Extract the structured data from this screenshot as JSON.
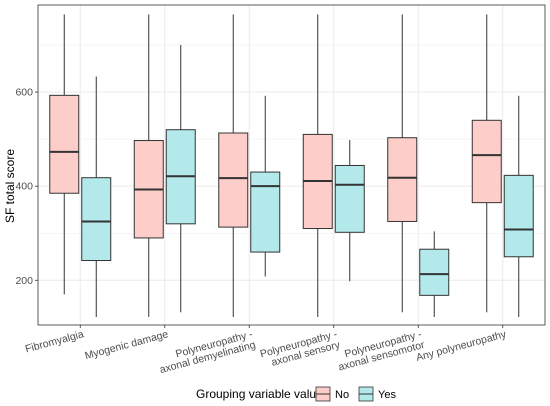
{
  "chart_data": {
    "type": "boxplot",
    "ylabel": "SF total score",
    "xlabel": "",
    "ylim": [
      105,
      785
    ],
    "y_ticks": [
      200,
      400,
      600
    ],
    "grid": true,
    "legend_position": "bottom",
    "legend_title": "Grouping variable value",
    "categories": [
      "Fibromyalgia",
      "Myogenic damage",
      "Polyneuropathy -\naxonal demyelinating",
      "Polyneuropathy -\naxonal sensory",
      "Polyneuropathy -\naxonal sensomotor",
      "Any polyneuropathy"
    ],
    "series": [
      {
        "name": "No",
        "color": "#F8766D",
        "fill": "#FDCDC9",
        "boxes": [
          {
            "min": 170,
            "q1": 385,
            "median": 473,
            "q3": 593,
            "max": 765
          },
          {
            "min": 122,
            "q1": 290,
            "median": 393,
            "q3": 497,
            "max": 765
          },
          {
            "min": 122,
            "q1": 313,
            "median": 417,
            "q3": 513,
            "max": 765
          },
          {
            "min": 122,
            "q1": 310,
            "median": 411,
            "q3": 510,
            "max": 765
          },
          {
            "min": 132,
            "q1": 325,
            "median": 418,
            "q3": 503,
            "max": 765
          },
          {
            "min": 132,
            "q1": 365,
            "median": 466,
            "q3": 540,
            "max": 765
          }
        ]
      },
      {
        "name": "Yes",
        "color": "#00BFC4",
        "fill": "#B3E9EA",
        "boxes": [
          {
            "min": 122,
            "q1": 242,
            "median": 325,
            "q3": 418,
            "max": 633
          },
          {
            "min": 132,
            "q1": 320,
            "median": 421,
            "q3": 520,
            "max": 700
          },
          {
            "min": 208,
            "q1": 260,
            "median": 400,
            "q3": 430,
            "max": 592
          },
          {
            "min": 198,
            "q1": 302,
            "median": 403,
            "q3": 444,
            "max": 498
          },
          {
            "min": 122,
            "q1": 168,
            "median": 213,
            "q3": 266,
            "max": 304
          },
          {
            "min": 122,
            "q1": 250,
            "median": 308,
            "q3": 423,
            "max": 592
          }
        ]
      }
    ]
  }
}
